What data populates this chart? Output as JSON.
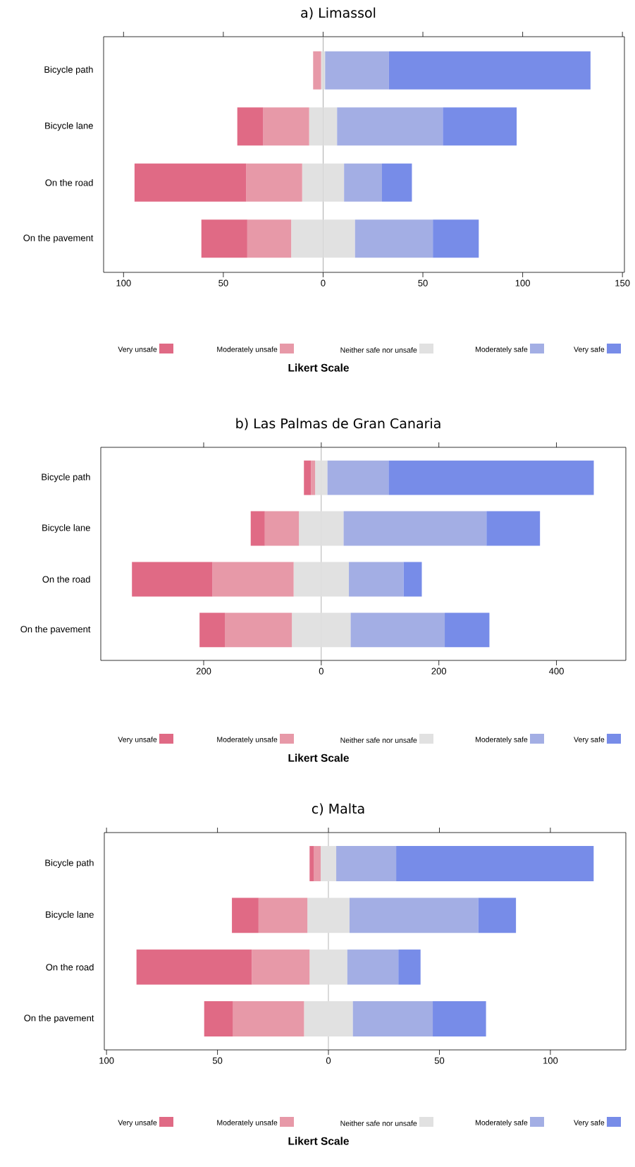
{
  "chart_data": [
    {
      "type": "bar",
      "orientation": "horizontal",
      "stacked": true,
      "title": "a) Limassol",
      "categories": [
        "Bicycle path",
        "Bicycle lane",
        "On the road",
        "On the pavement"
      ],
      "series": [
        {
          "name": "Neither safe nor unsafe",
          "color": "#e1e1e1",
          "values": [
            -1,
            -7,
            -10.5,
            -16
          ]
        },
        {
          "name": "Moderately unsafe",
          "color": "#e799a8",
          "values": [
            -4,
            -23,
            -28,
            -22
          ]
        },
        {
          "name": "Very unsafe",
          "color": "#e06a85",
          "values": [
            0,
            -13,
            -56,
            -23
          ]
        },
        {
          "color": "#e1e1e1",
          "values": [
            1,
            7,
            10.5,
            16
          ]
        },
        {
          "name": "Moderately safe",
          "color": "#a3aee4",
          "values": [
            32,
            53,
            19,
            39
          ]
        },
        {
          "name": "Very safe",
          "color": "#778ce8",
          "values": [
            101,
            37,
            15,
            23
          ]
        }
      ],
      "xlim": [
        -110,
        151
      ],
      "xticks": [
        {
          "value": -100,
          "label": "100"
        },
        {
          "value": -50,
          "label": "50"
        },
        0,
        50,
        100,
        150
      ],
      "ref_lines": [
        {
          "axis": "x",
          "value": 0,
          "color": "#a0a0a0"
        }
      ],
      "legend": "bottom",
      "legend_title": "Likert Scale"
    },
    {
      "type": "bar",
      "orientation": "horizontal",
      "stacked": true,
      "title": "b) Las Palmas de Gran Canaria",
      "categories": [
        "Bicycle path",
        "Bicycle lane",
        "On the road",
        "On the pavement"
      ],
      "series": [
        {
          "name": "Neither safe nor unsafe",
          "color": "#e1e1e1",
          "values": [
            -10.5,
            -38,
            -47,
            -50
          ]
        },
        {
          "name": "Moderately unsafe",
          "color": "#e799a8",
          "values": [
            -7,
            -58,
            -138,
            -114
          ]
        },
        {
          "name": "Very unsafe",
          "color": "#e06a85",
          "values": [
            -12,
            -24,
            -137,
            -43
          ]
        },
        {
          "color": "#e1e1e1",
          "values": [
            10.5,
            38,
            47,
            50
          ]
        },
        {
          "name": "Moderately safe",
          "color": "#a3aee4",
          "values": [
            104,
            243,
            93,
            160
          ]
        },
        {
          "name": "Very safe",
          "color": "#778ce8",
          "values": [
            349,
            91,
            31,
            76
          ]
        }
      ],
      "xlim": [
        -375,
        518
      ],
      "xticks": [
        {
          "value": -200,
          "label": "200"
        },
        0,
        200,
        400
      ],
      "ref_lines": [
        {
          "axis": "x",
          "value": 0,
          "color": "#a0a0a0"
        }
      ],
      "legend": "bottom",
      "legend_title": "Likert Scale"
    },
    {
      "type": "bar",
      "orientation": "horizontal",
      "stacked": true,
      "title": "c) Malta",
      "categories": [
        "Bicycle path",
        "Bicycle lane",
        "On the road",
        "On the pavement"
      ],
      "series": [
        {
          "name": "Neither safe nor unsafe",
          "color": "#e1e1e1",
          "values": [
            -3.5,
            -9.5,
            -8.5,
            -11
          ]
        },
        {
          "name": "Moderately unsafe",
          "color": "#e799a8",
          "values": [
            -3,
            -22,
            -26,
            -32
          ]
        },
        {
          "name": "Very unsafe",
          "color": "#e06a85",
          "values": [
            -2,
            -12,
            -52,
            -13
          ]
        },
        {
          "color": "#e1e1e1",
          "values": [
            3.5,
            9.5,
            8.5,
            11
          ]
        },
        {
          "name": "Moderately safe",
          "color": "#a3aee4",
          "values": [
            27,
            58,
            23,
            36
          ]
        },
        {
          "name": "Very safe",
          "color": "#778ce8",
          "values": [
            89,
            17,
            10,
            24
          ]
        }
      ],
      "xlim": [
        -101,
        134
      ],
      "xticks": [
        {
          "value": -100,
          "label": "100"
        },
        {
          "value": -50,
          "label": "50"
        },
        0,
        50,
        100
      ],
      "ref_lines": [
        {
          "axis": "x",
          "value": 0,
          "color": "#a0a0a0"
        }
      ],
      "legend": "bottom",
      "legend_title": "Likert Scale"
    }
  ]
}
